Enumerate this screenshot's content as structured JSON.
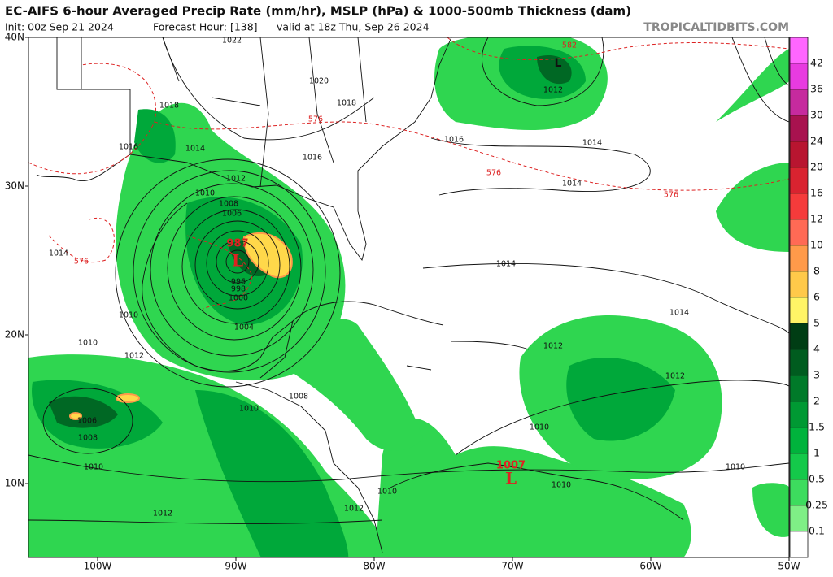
{
  "header": {
    "title": "EC-AIFS 6-hour Averaged Precip Rate (mm/hr), MSLP (hPa) & 1000-500mb Thickness (dam)",
    "init": "Init: 00z Sep 21 2024",
    "forecast_hour": "Forecast Hour: [138]",
    "valid": "valid at 18z Thu, Sep 26 2024",
    "source": "TROPICALTIDBITS.COM"
  },
  "map": {
    "lat_labels": [
      "40N",
      "30N",
      "20N",
      "10N"
    ],
    "lon_labels": [
      "100W",
      "90W",
      "80W",
      "70W",
      "60W",
      "50W"
    ],
    "isobar_labels": [
      "1022",
      "1020",
      "1018",
      "1018",
      "1016",
      "1014",
      "1016",
      "1016",
      "1012",
      "1014",
      "1014",
      "1012",
      "1010",
      "1008",
      "1006",
      "1014",
      "1014",
      "1012",
      "1012",
      "1010",
      "1010",
      "1010",
      "996",
      "998",
      "1000",
      "1004",
      "1008",
      "1010",
      "1010",
      "1010",
      "1012",
      "1006",
      "1008",
      "1010",
      "1012",
      "1010",
      "1012",
      "1014"
    ],
    "thickness_labels": [
      "576",
      "576",
      "576",
      "576",
      "582"
    ],
    "lows": [
      {
        "symbol": "L",
        "pressure": "987"
      },
      {
        "symbol": "L",
        "pressure": "1007"
      }
    ],
    "other_low": "L"
  },
  "colorbar": {
    "labels": [
      42,
      36,
      30,
      24,
      20,
      16,
      12,
      10,
      8,
      6,
      5,
      4,
      3,
      2,
      1.5,
      1,
      0.5,
      0.25,
      0.1
    ],
    "colors": [
      "#ff66ff",
      "#e83be0",
      "#c62a9e",
      "#a8124f",
      "#b81530",
      "#d92330",
      "#f53b3b",
      "#ff6a55",
      "#ff9a4a",
      "#ffc94a",
      "#fff466",
      "#003d14",
      "#005c1f",
      "#007a29",
      "#009933",
      "#00b33c",
      "#14c94a",
      "#3ddc5e",
      "#7fef86",
      "#ffffff"
    ]
  }
}
